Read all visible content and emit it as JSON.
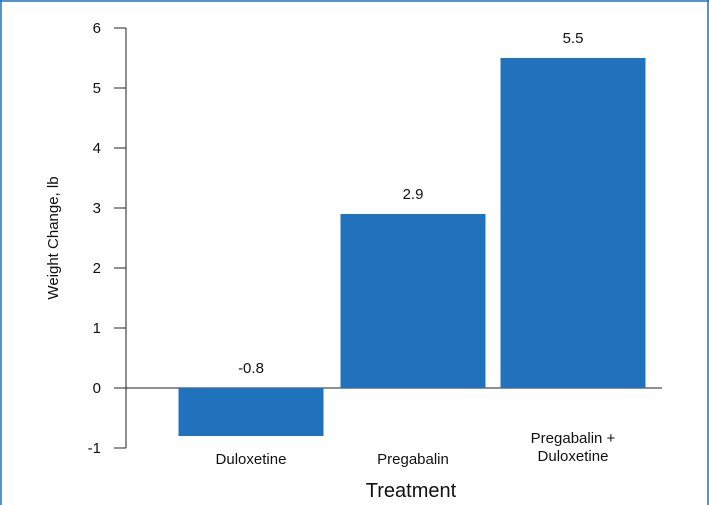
{
  "chart_data": {
    "type": "bar",
    "categories": [
      [
        "Duloxetine"
      ],
      [
        "Pregabalin"
      ],
      [
        "Pregabalin +",
        "Duloxetine"
      ]
    ],
    "values": [
      -0.8,
      2.9,
      5.5
    ],
    "data_labels": [
      "-0.8",
      "2.9",
      "5.5"
    ],
    "title": "",
    "xlabel": "Treatment",
    "ylabel": "Weight Change, lb",
    "ylim": [
      -1,
      6
    ],
    "yticks": [
      -1,
      0,
      1,
      2,
      3,
      4,
      5,
      6
    ],
    "grid": false,
    "legend": "none",
    "colors": {
      "bar": "#1f72bb",
      "axis": "#222222",
      "frame": "#1f72bb"
    }
  }
}
